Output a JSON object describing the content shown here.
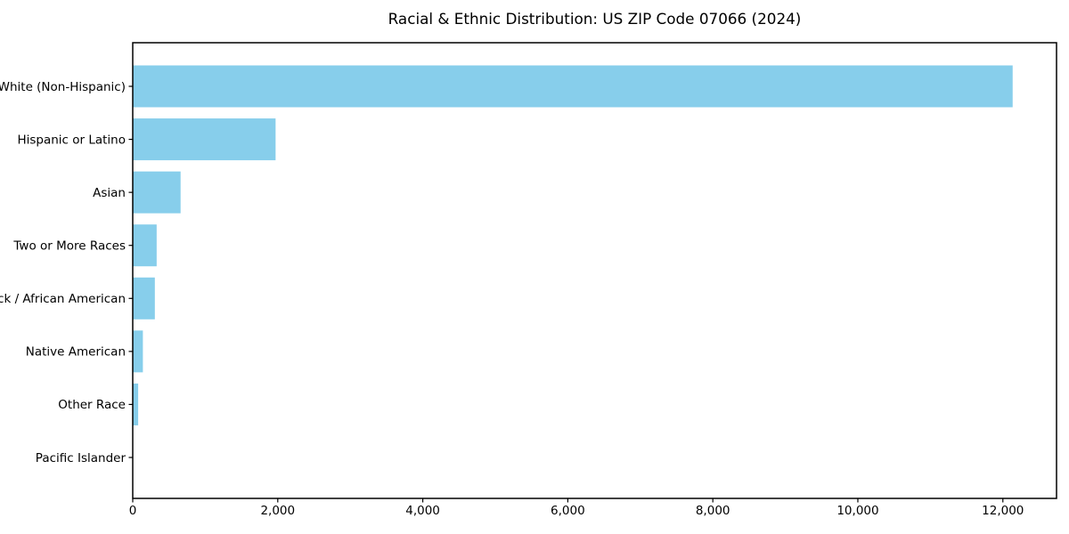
{
  "figure": {
    "background": "#ffffff",
    "text_color": "#000000"
  },
  "chart_data": {
    "type": "bar",
    "orientation": "horizontal",
    "title": "Racial & Ethnic Distribution: US ZIP Code 07066 (2024)",
    "categories": [
      "White (Non-Hispanic)",
      "Hispanic or Latino",
      "Asian",
      "Two or More Races",
      "Black / African American",
      "Native American",
      "Other Race",
      "Pacific Islander"
    ],
    "values": [
      12135,
      1970,
      660,
      330,
      305,
      140,
      75,
      0
    ],
    "xlabel": "",
    "ylabel": "",
    "xlim": [
      0,
      12740
    ],
    "xticks": [
      0,
      2000,
      4000,
      6000,
      8000,
      10000,
      12000
    ],
    "xtick_labels": [
      "0",
      "2,000",
      "4,000",
      "6,000",
      "8,000",
      "10,000",
      "12,000"
    ],
    "bar_color": "#87CEEB",
    "grid": false,
    "legend": "none"
  }
}
